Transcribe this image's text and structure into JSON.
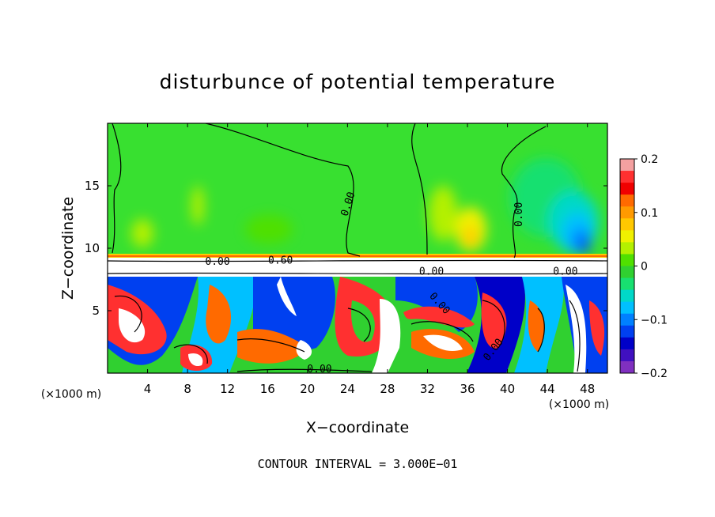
{
  "chart_data": {
    "type": "heatmap",
    "title": "disturbunce of potential temperature",
    "xlabel": "X−coordinate",
    "ylabel": "Z−coordinate",
    "x_unit": "(×1000 m)",
    "y_unit": "(×1000 m)",
    "xlim": [
      0,
      50
    ],
    "ylim": [
      0,
      20
    ],
    "x_ticks": [
      4,
      8,
      12,
      16,
      20,
      24,
      28,
      32,
      36,
      40,
      44,
      48
    ],
    "y_ticks": [
      5,
      10,
      15
    ],
    "colorbar": {
      "vmin": -0.2,
      "vmax": 0.2,
      "tick_values": [
        0.2,
        0.1,
        0,
        -0.1,
        -0.2
      ],
      "tick_labels": [
        "0.2",
        "0.1",
        "0",
        "−0.1",
        "−0.2"
      ],
      "colors": [
        "#f4a0a0",
        "#ff3030",
        "#f00000",
        "#ff6a00",
        "#ff9a00",
        "#ffc800",
        "#f0f000",
        "#b4f000",
        "#50e000",
        "#30d030",
        "#18e070",
        "#00d8c8",
        "#00c0ff",
        "#0080ff",
        "#0040f0",
        "#0000c8",
        "#4010c0",
        "#8030c0"
      ]
    },
    "contour_labels": [
      {
        "text": "0.00",
        "x": 24.2,
        "z": 13.5,
        "rot": -72
      },
      {
        "text": "0.00",
        "x": 41.3,
        "z": 12.7,
        "rot": -90
      },
      {
        "text": "0.00",
        "x": 11.0,
        "z": 8.8,
        "rot": 0
      },
      {
        "text": "0.60",
        "x": 17.3,
        "z": 8.9,
        "rot": 0
      },
      {
        "text": "0.00",
        "x": 32.4,
        "z": 8.0,
        "rot": 0
      },
      {
        "text": "0.00",
        "x": 45.8,
        "z": 8.0,
        "rot": 0
      },
      {
        "text": "0.00",
        "x": 33.1,
        "z": 5.5,
        "rot": 48
      },
      {
        "text": "0.00",
        "x": 38.7,
        "z": 1.8,
        "rot": -52
      },
      {
        "text": "0.00",
        "x": 21.2,
        "z": 0.2,
        "rot": 0
      }
    ],
    "annotation": "CONTOUR INTERVAL = 3.000E−01"
  }
}
